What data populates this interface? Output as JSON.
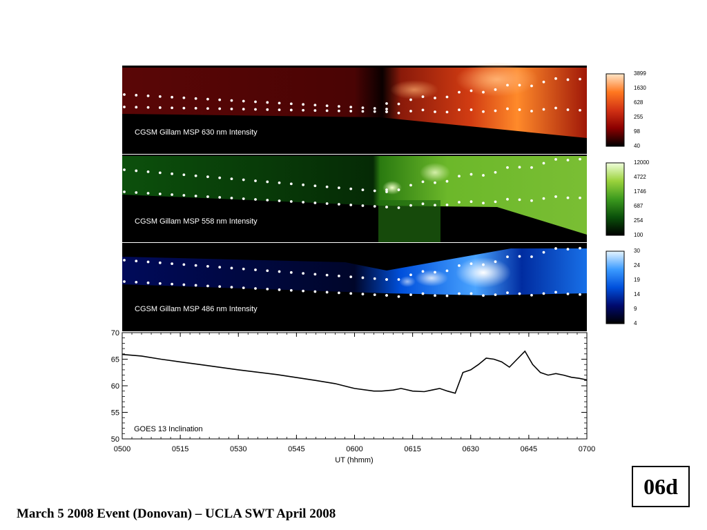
{
  "chart_data": [
    {
      "type": "heatmap",
      "title": "CGSM Gillam MSP 630 nm Intensity",
      "colorbar_ticks": [
        "3899",
        "1630",
        "628",
        "255",
        "98",
        "40"
      ],
      "colors": [
        "#000000",
        "#8b0000",
        "#d23214",
        "#ff7820",
        "#ffe6c8"
      ]
    },
    {
      "type": "heatmap",
      "title": "CGSM Gillam MSP 558 nm Intensity",
      "colorbar_ticks": [
        "12000",
        "4722",
        "1746",
        "687",
        "254",
        "100"
      ],
      "colors": [
        "#000000",
        "#0a500a",
        "#3c9a1e",
        "#9ad23c",
        "#f0ffdc"
      ]
    },
    {
      "type": "heatmap",
      "title": "CGSM Gillam MSP 486 nm Intensity",
      "colorbar_ticks": [
        "30",
        "24",
        "19",
        "14",
        "9",
        "4"
      ],
      "colors": [
        "#000000",
        "#000a6e",
        "#0050dc",
        "#3c9bff",
        "#e6f5ff"
      ]
    },
    {
      "type": "line",
      "title": "GOES 13 Inclination",
      "xlabel": "UT (hhmm)",
      "ylabel": "",
      "x_ticks": [
        "0500",
        "0515",
        "0530",
        "0545",
        "0600",
        "0615",
        "0630",
        "0645",
        "0700"
      ],
      "y_ticks": [
        "50",
        "55",
        "60",
        "65",
        "70"
      ],
      "ylim": [
        50,
        70
      ],
      "x_unit": "minutes after 0500 UT",
      "series": [
        {
          "x": [
            0,
            5,
            10,
            15,
            20,
            30,
            40,
            50,
            55,
            60,
            65,
            67,
            70,
            72,
            75,
            78,
            80,
            82,
            84,
            86,
            88,
            90,
            92,
            94,
            96,
            98,
            100,
            102,
            104,
            106,
            108,
            110,
            112,
            114,
            116,
            118,
            120
          ],
          "y": [
            65.9,
            65.6,
            65.0,
            64.5,
            64.0,
            63.0,
            62.1,
            61.0,
            60.4,
            59.5,
            59.0,
            59.0,
            59.2,
            59.5,
            59.0,
            58.9,
            59.2,
            59.5,
            59.0,
            58.6,
            62.5,
            63.0,
            64.0,
            65.2,
            65.0,
            64.5,
            63.5,
            65.0,
            66.5,
            64.0,
            62.5,
            62.0,
            62.3,
            62.0,
            61.6,
            61.4,
            61.1
          ]
        }
      ]
    }
  ],
  "slide_badge": "06d",
  "footer": "March 5 2008 Event (Donovan) – UCLA SWT April 2008"
}
